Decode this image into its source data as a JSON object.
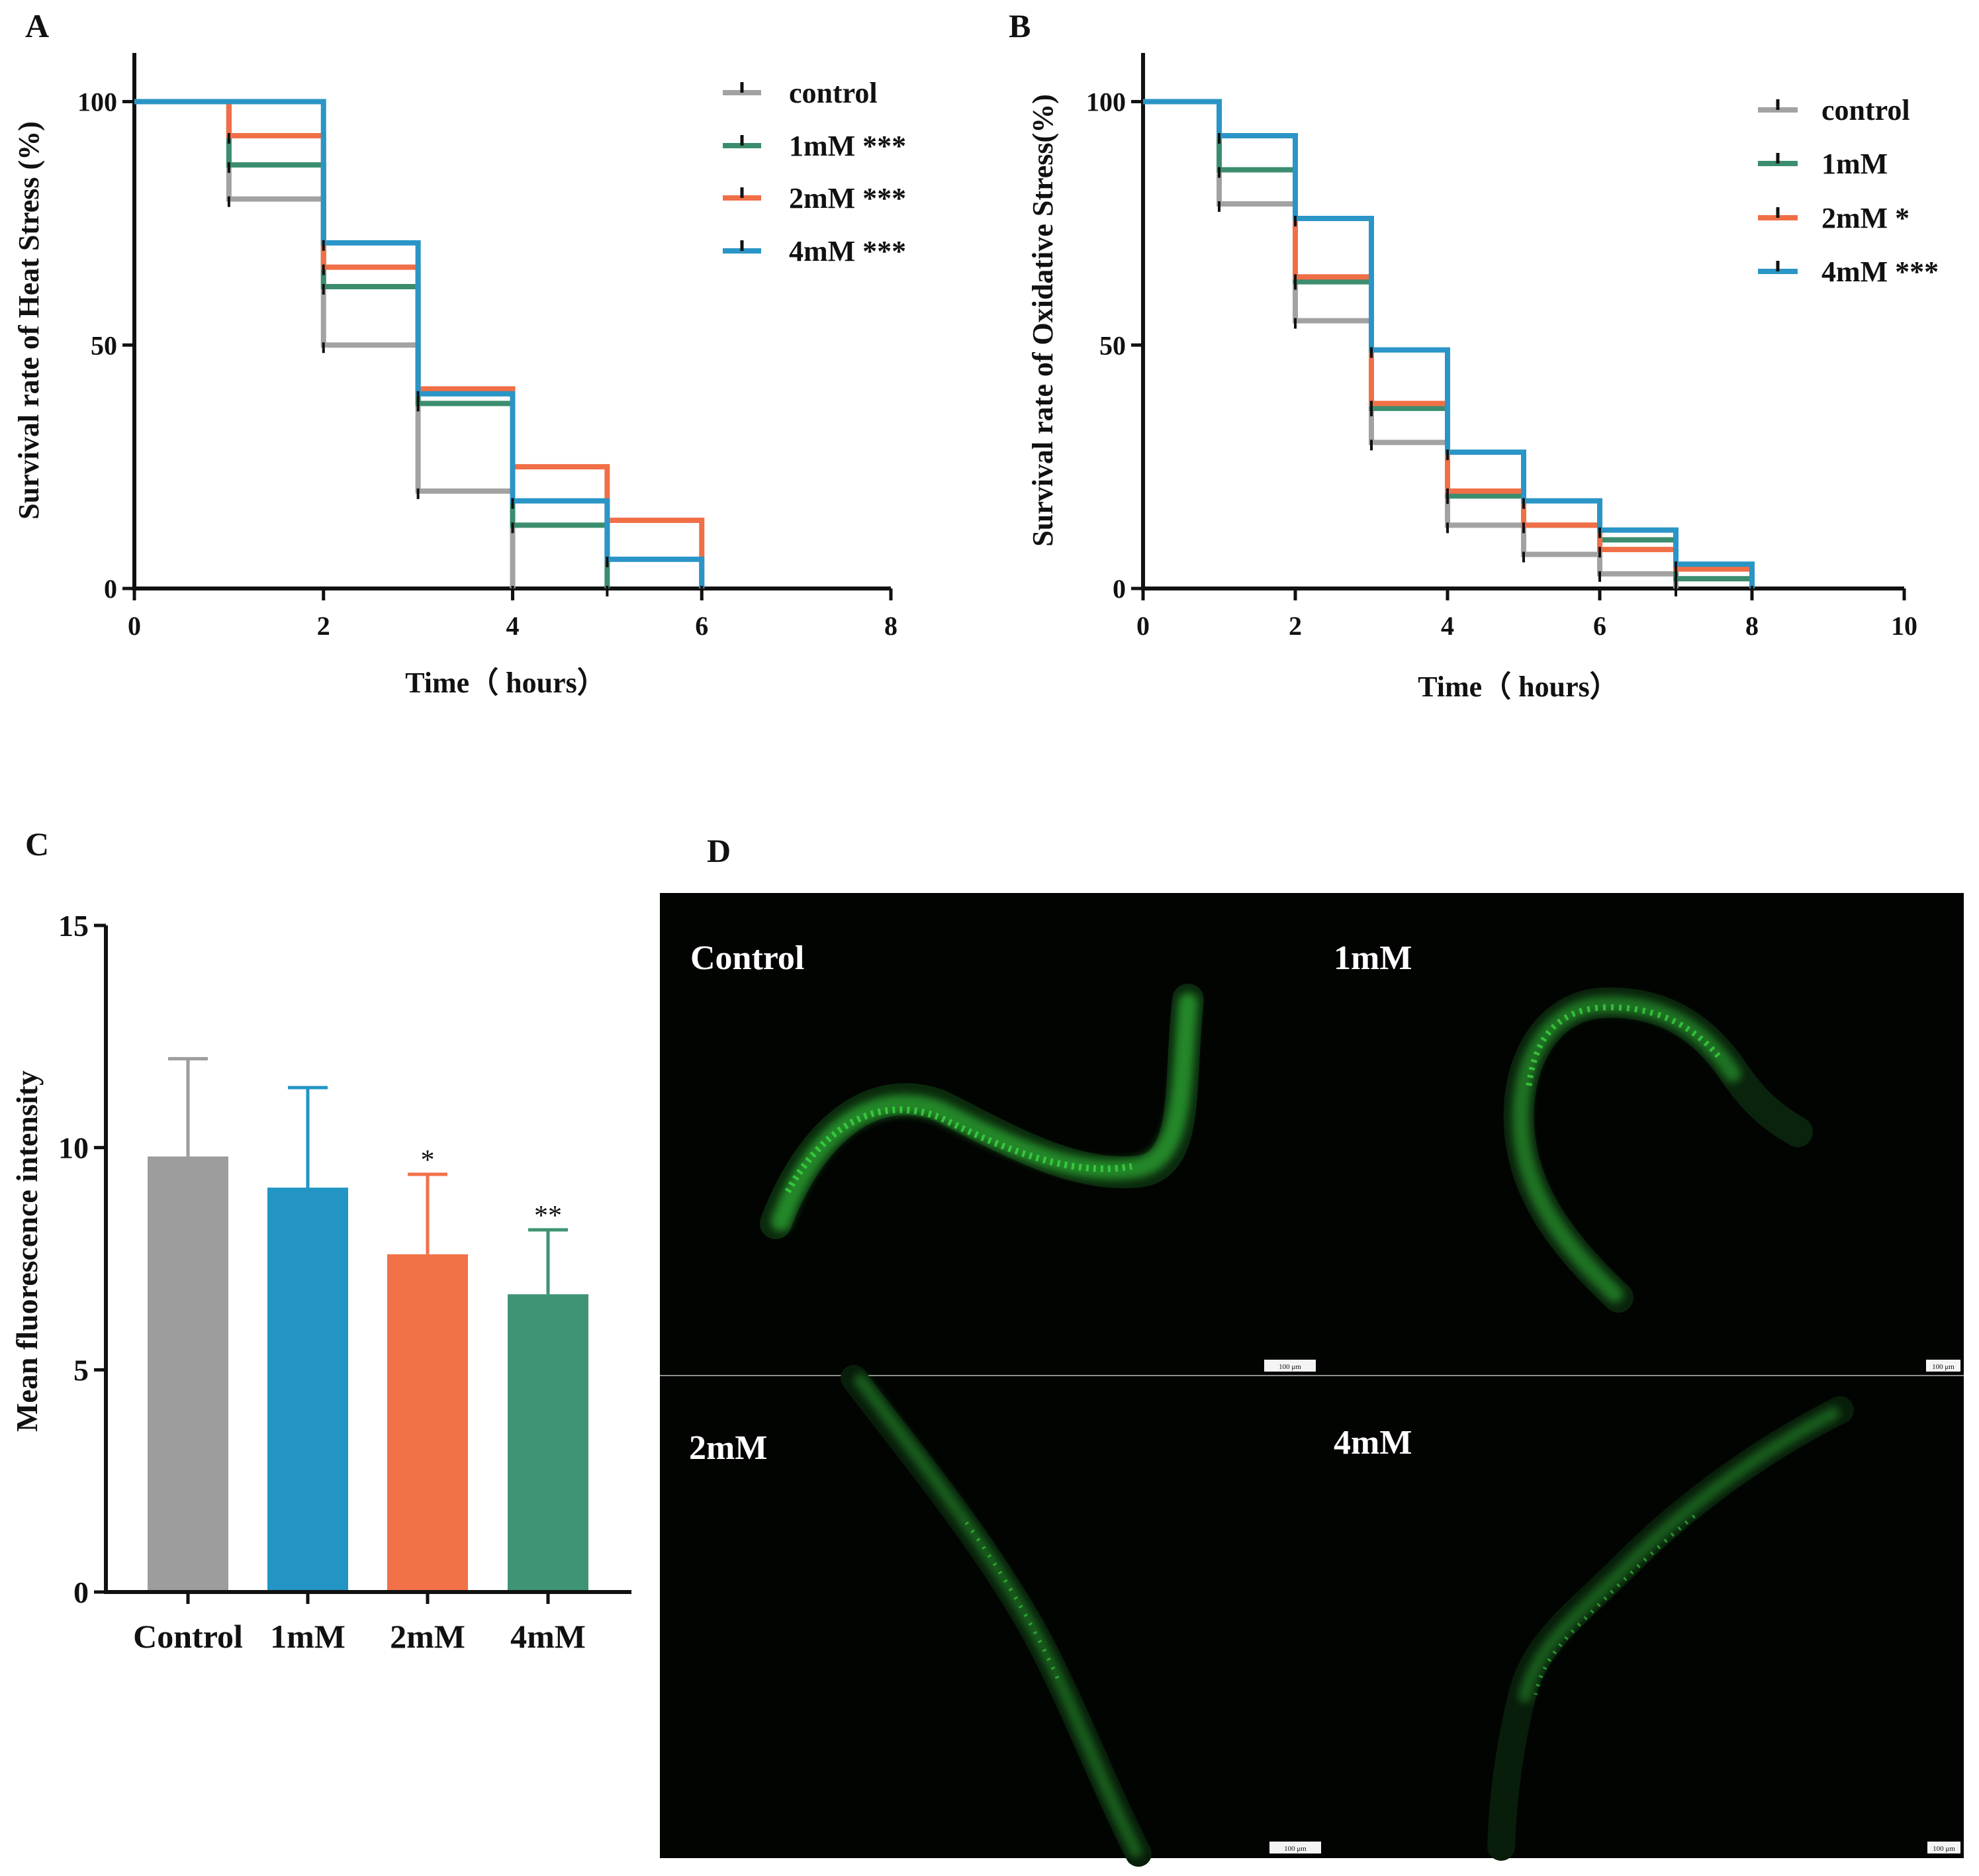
{
  "colors": {
    "control": "#a2a2a2",
    "mM1": "#3b8d6e",
    "mM2": "#f06f47",
    "mM4": "#2a95c6",
    "bar_control": "#9d9d9d",
    "bar_1mM": "#2395c5",
    "bar_2mM": "#f27148",
    "bar_4mM": "#3f9474",
    "glow": "#39d33f"
  },
  "panels": {
    "A": "A",
    "B": "B",
    "C": "C",
    "D": "D"
  },
  "chart_data": [
    {
      "panel": "A",
      "type": "line",
      "step": true,
      "title": "",
      "xlabel": "Time（ hours）",
      "ylabel": "Survival rate of Heat Stress (%)",
      "xlim": [
        0,
        8
      ],
      "ylim": [
        0,
        110
      ],
      "xticks": [
        0,
        2,
        4,
        6,
        8
      ],
      "yticks": [
        0,
        50,
        100
      ],
      "legend_position": "top-right",
      "series": [
        {
          "name": "control",
          "color_key": "control",
          "x": [
            0,
            1,
            2,
            3,
            4
          ],
          "y": [
            100,
            80,
            50,
            20,
            0
          ]
        },
        {
          "name": "1mM ***",
          "color_key": "mM1",
          "x": [
            0,
            1,
            2,
            3,
            4,
            5
          ],
          "y": [
            100,
            87,
            62,
            38,
            13,
            0
          ]
        },
        {
          "name": "2mM ***",
          "color_key": "mM2",
          "x": [
            0,
            1,
            2,
            3,
            4,
            5,
            6
          ],
          "y": [
            100,
            93,
            66,
            41,
            25,
            14,
            0
          ]
        },
        {
          "name": "4mM ***",
          "color_key": "mM4",
          "x": [
            0,
            2,
            3,
            4,
            5,
            6
          ],
          "y": [
            100,
            71,
            40,
            18,
            6,
            0
          ]
        }
      ]
    },
    {
      "panel": "B",
      "type": "line",
      "step": true,
      "title": "",
      "xlabel": "Time（ hours）",
      "ylabel": "Survival rate of  Oxidative Stress(%)",
      "xlim": [
        0,
        10
      ],
      "ylim": [
        0,
        110
      ],
      "xticks": [
        0,
        2,
        4,
        6,
        8,
        10
      ],
      "yticks": [
        0,
        50,
        100
      ],
      "legend_position": "top-right",
      "series": [
        {
          "name": "control",
          "color_key": "control",
          "x": [
            0,
            1,
            2,
            3,
            4,
            5,
            6,
            7
          ],
          "y": [
            100,
            79,
            55,
            30,
            13,
            7,
            3,
            0
          ]
        },
        {
          "name": "1mM",
          "color_key": "mM1",
          "x": [
            0,
            1,
            2,
            3,
            4,
            5,
            6,
            7,
            8
          ],
          "y": [
            100,
            86,
            63,
            37,
            19,
            13,
            10,
            2,
            0
          ]
        },
        {
          "name": "2mM *",
          "color_key": "mM2",
          "x": [
            0,
            1,
            2,
            3,
            4,
            5,
            6,
            7,
            8
          ],
          "y": [
            100,
            93,
            64,
            38,
            20,
            13,
            8,
            4,
            0
          ]
        },
        {
          "name": "4mM ***",
          "color_key": "mM4",
          "x": [
            0,
            1,
            2,
            3,
            4,
            5,
            6,
            7,
            8
          ],
          "y": [
            100,
            93,
            76,
            49,
            28,
            18,
            12,
            5,
            0
          ]
        }
      ]
    },
    {
      "panel": "C",
      "type": "bar",
      "title": "",
      "xlabel": "",
      "ylabel": "Mean fluorescence intensity",
      "ylim": [
        0,
        15
      ],
      "yticks": [
        0,
        5,
        10,
        15
      ],
      "categories": [
        "Control",
        "1mM",
        "2mM",
        "4mM"
      ],
      "values": [
        9.8,
        9.1,
        7.6,
        6.7
      ],
      "error": [
        2.2,
        2.25,
        1.8,
        1.45
      ],
      "significance": [
        "",
        "",
        "*",
        "**"
      ],
      "color_keys": [
        "bar_control",
        "bar_1mM",
        "bar_2mM",
        "bar_4mM"
      ]
    }
  ],
  "microscopy": {
    "tiles": [
      {
        "label": "Control",
        "scale_bar": "100 μm"
      },
      {
        "label": "1mM",
        "scale_bar": "100 μm"
      },
      {
        "label": "2mM",
        "scale_bar": "100 μm"
      },
      {
        "label": "4mM",
        "scale_bar": "100 μm"
      }
    ]
  }
}
